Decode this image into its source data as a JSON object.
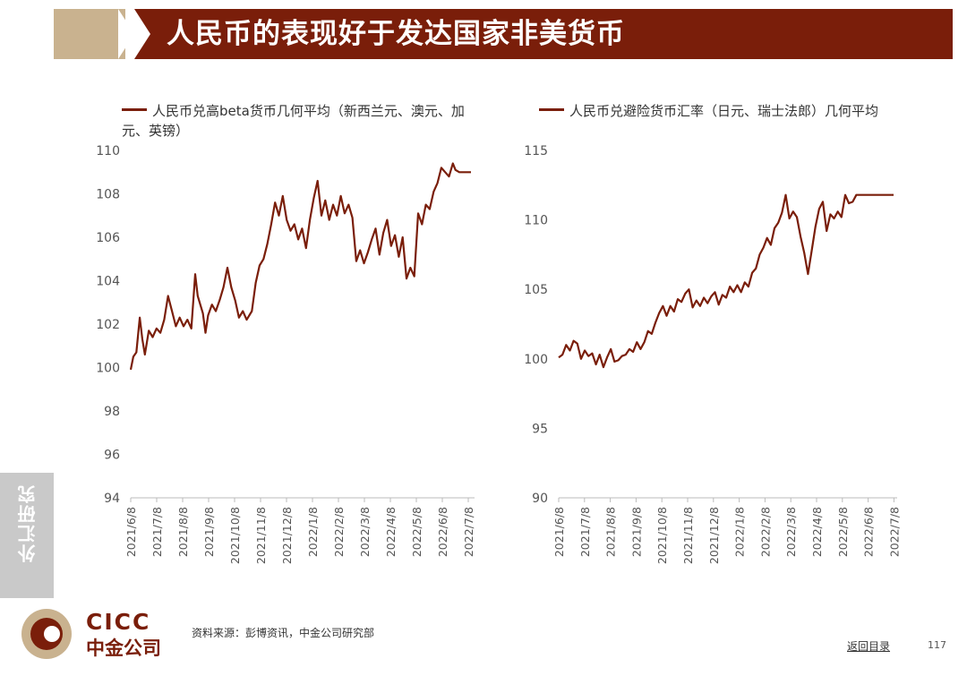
{
  "header": {
    "title": "人民币的表现好于发达国家非美货币"
  },
  "side_tab": {
    "label": "外汇研究"
  },
  "footer": {
    "logo_text": "CICC",
    "logo_cn": "中金公司",
    "source": "资料来源：彭博资讯，中金公司研究部",
    "back_link": "返回目录",
    "page_number": "117"
  },
  "colors": {
    "series": "#7a1e0a",
    "header_bar": "#7a1e0a",
    "header_accent": "#c9b28f",
    "side_tab": "#c9c9c9"
  },
  "chart_data": [
    {
      "type": "line",
      "series": [
        {
          "name": "人民币兑高beta货币几何平均（新西兰元、澳元、加元、英镑）"
        }
      ],
      "ylim": [
        94,
        110
      ],
      "yticks": [
        "110",
        "108",
        "106",
        "104",
        "102",
        "100",
        "98",
        "96",
        "94"
      ],
      "xticks": [
        "2021/6/8",
        "2021/7/8",
        "2021/8/8",
        "2021/9/8",
        "2021/10/8",
        "2021/11/8",
        "2021/12/8",
        "2022/1/8",
        "2022/2/8",
        "2022/3/8",
        "2022/4/8",
        "2022/5/8",
        "2022/6/8",
        "2022/7/8"
      ],
      "x": [
        0,
        0.1,
        0.22,
        0.35,
        0.45,
        0.55,
        0.7,
        0.85,
        1.0,
        1.15,
        1.3,
        1.45,
        1.6,
        1.75,
        1.9,
        2.05,
        2.2,
        2.35,
        2.5,
        2.6,
        2.7,
        2.8,
        2.9,
        3.0,
        3.15,
        3.3,
        3.45,
        3.6,
        3.75,
        3.9,
        4.05,
        4.2,
        4.35,
        4.5,
        4.7,
        4.85,
        5.0,
        5.15,
        5.3,
        5.45,
        5.6,
        5.75,
        5.9,
        6.05,
        6.2,
        6.35,
        6.5,
        6.65,
        6.8,
        6.95,
        7.1,
        7.25,
        7.4,
        7.55,
        7.7,
        7.85,
        8.0,
        8.15,
        8.3,
        8.45,
        8.6,
        8.75,
        8.9,
        9.05,
        9.2,
        9.35,
        9.5,
        9.65,
        9.8,
        9.95,
        10.1,
        10.25,
        10.4,
        10.55,
        10.7,
        10.85,
        11.0,
        11.15,
        11.3,
        11.45,
        11.6,
        11.75,
        11.9,
        12.05,
        12.2,
        12.35,
        12.5,
        12.6,
        12.75,
        12.9,
        13.05,
        13.2
      ],
      "values": [
        99.9,
        100.5,
        100.7,
        102.3,
        101.3,
        100.6,
        101.7,
        101.4,
        101.8,
        101.6,
        102.2,
        103.3,
        102.6,
        101.9,
        102.3,
        101.9,
        102.2,
        101.8,
        104.3,
        103.3,
        102.9,
        102.5,
        101.6,
        102.4,
        102.9,
        102.6,
        103.1,
        103.7,
        104.6,
        103.7,
        103.1,
        102.3,
        102.6,
        102.2,
        102.6,
        103.9,
        104.7,
        105.0,
        105.7,
        106.6,
        107.6,
        107.0,
        107.9,
        106.8,
        106.3,
        106.6,
        105.9,
        106.4,
        105.5,
        106.8,
        107.8,
        108.6,
        107.0,
        107.7,
        106.8,
        107.5,
        107.0,
        107.9,
        107.1,
        107.5,
        106.9,
        104.9,
        105.4,
        104.8,
        105.3,
        105.9,
        106.4,
        105.2,
        106.2,
        106.8,
        105.6,
        106.1,
        105.1,
        106.0,
        104.1,
        104.6,
        104.2,
        107.1,
        106.6,
        107.5,
        107.3,
        108.1,
        108.5,
        109.2,
        109.0,
        108.8,
        109.4,
        109.1,
        109.0,
        109.0,
        109.0,
        109.0
      ],
      "xlim": [
        0,
        13.2
      ]
    },
    {
      "type": "line",
      "series": [
        {
          "name": "人民币兑避险货币汇率（日元、瑞士法郎）几何平均"
        }
      ],
      "ylim": [
        90,
        115
      ],
      "yticks": [
        "115",
        "110",
        "105",
        "100",
        "95",
        "90"
      ],
      "xticks": [
        "2021/6/8",
        "2021/7/8",
        "2021/8/8",
        "2021/9/8",
        "2021/10/8",
        "2021/11/8",
        "2021/12/8",
        "2022/1/8",
        "2022/2/8",
        "2022/3/8",
        "2022/4/8",
        "2022/5/8",
        "2022/6/8",
        "2022/7/8"
      ],
      "x": [
        0,
        0.15,
        0.3,
        0.45,
        0.6,
        0.75,
        0.9,
        1.05,
        1.2,
        1.35,
        1.5,
        1.65,
        1.8,
        1.95,
        2.1,
        2.25,
        2.4,
        2.55,
        2.7,
        2.85,
        3.0,
        3.15,
        3.3,
        3.45,
        3.6,
        3.75,
        3.9,
        4.05,
        4.2,
        4.35,
        4.5,
        4.65,
        4.8,
        4.95,
        5.1,
        5.25,
        5.4,
        5.55,
        5.7,
        5.85,
        6.0,
        6.15,
        6.3,
        6.45,
        6.6,
        6.75,
        6.9,
        7.05,
        7.2,
        7.35,
        7.5,
        7.65,
        7.8,
        7.95,
        8.1,
        8.25,
        8.4,
        8.55,
        8.7,
        8.85,
        9.0,
        9.15,
        9.3,
        9.45,
        9.6,
        9.75,
        9.9,
        10.05,
        10.2,
        10.35,
        10.5,
        10.65,
        10.8,
        10.95,
        11.1,
        11.25,
        11.4,
        11.55,
        11.7,
        11.85,
        12.0,
        12.15,
        12.3,
        12.45,
        12.6,
        12.75,
        12.9,
        13.05,
        13.2,
        13.35,
        13.5
      ],
      "values": [
        100.1,
        100.3,
        101.0,
        100.6,
        101.3,
        101.1,
        100.0,
        100.6,
        100.2,
        100.4,
        99.6,
        100.3,
        99.4,
        100.1,
        100.7,
        99.8,
        99.9,
        100.2,
        100.3,
        100.7,
        100.5,
        101.2,
        100.7,
        101.2,
        102.0,
        101.8,
        102.6,
        103.3,
        103.8,
        103.1,
        103.8,
        103.4,
        104.3,
        104.1,
        104.7,
        105.0,
        103.7,
        104.2,
        103.8,
        104.4,
        104.0,
        104.5,
        104.8,
        103.9,
        104.6,
        104.4,
        105.2,
        104.8,
        105.3,
        104.8,
        105.5,
        105.2,
        106.2,
        106.5,
        107.5,
        108.0,
        108.7,
        108.2,
        109.4,
        109.8,
        110.5,
        111.8,
        110.1,
        110.6,
        110.2,
        108.8,
        107.6,
        106.1,
        107.8,
        109.5,
        110.8,
        111.3,
        109.2,
        110.4,
        110.1,
        110.6,
        110.2,
        111.8,
        111.2,
        111.3,
        111.8,
        111.8,
        111.8,
        111.8,
        111.8,
        111.8,
        111.8,
        111.8,
        111.8,
        111.8,
        111.8
      ],
      "xlim": [
        0,
        13.5
      ]
    }
  ]
}
